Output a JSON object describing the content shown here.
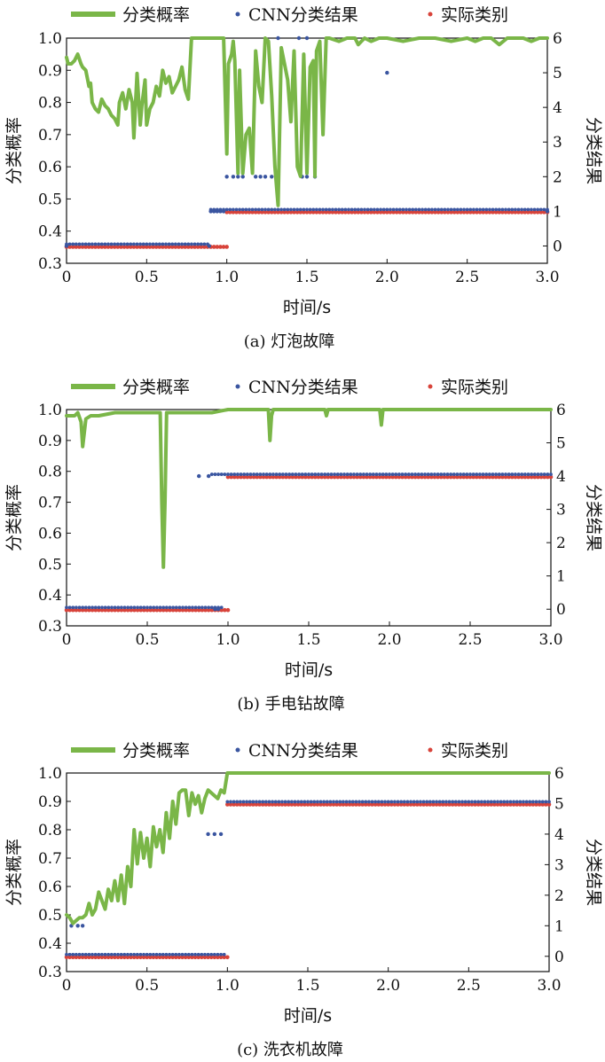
{
  "colors": {
    "probability": "#7ab648",
    "cnn": "#3a55a0",
    "actual": "#d8433a"
  },
  "legend": {
    "probability": "分类概率",
    "cnn": "CNN分类结果",
    "actual": "实际类别"
  },
  "chart_data": [
    {
      "type": "line",
      "caption": "(a) 灯泡故障",
      "xlabel": "时间/s",
      "ylabel": "分类概率",
      "ylabel_right": "分类结果",
      "xlim": [
        0,
        3.0
      ],
      "ylim": [
        0.3,
        1.0
      ],
      "ylim_right": [
        -0.5,
        6
      ],
      "xticks": [
        "0",
        "0.5",
        "1.0",
        "1.5",
        "2.0",
        "2.5",
        "3.0"
      ],
      "yticks": [
        "0.3",
        "0.4",
        "0.5",
        "0.6",
        "0.7",
        "0.8",
        "0.9",
        "1.0"
      ],
      "yticks_right": [
        "0",
        "1",
        "2",
        "3",
        "4",
        "5",
        "6"
      ],
      "series": [
        {
          "name": "分类概率",
          "x": [
            0,
            0.01,
            0.03,
            0.05,
            0.07,
            0.09,
            0.1,
            0.12,
            0.14,
            0.15,
            0.16,
            0.18,
            0.2,
            0.22,
            0.24,
            0.26,
            0.28,
            0.3,
            0.32,
            0.33,
            0.35,
            0.37,
            0.39,
            0.41,
            0.42,
            0.44,
            0.46,
            0.47,
            0.49,
            0.5,
            0.52,
            0.54,
            0.56,
            0.58,
            0.6,
            0.62,
            0.64,
            0.66,
            0.68,
            0.7,
            0.72,
            0.74,
            0.76,
            0.78,
            0.8,
            0.82,
            0.84,
            0.86,
            0.88,
            0.9,
            0.92,
            0.94,
            0.96,
            0.98,
            1.0,
            1.01,
            1.03,
            1.04,
            1.05,
            1.07,
            1.08,
            1.1,
            1.12,
            1.14,
            1.16,
            1.18,
            1.2,
            1.22,
            1.24,
            1.26,
            1.28,
            1.3,
            1.32,
            1.34,
            1.36,
            1.38,
            1.4,
            1.42,
            1.44,
            1.46,
            1.48,
            1.5,
            1.52,
            1.54,
            1.55,
            1.56,
            1.58,
            1.6,
            1.62,
            1.64,
            1.7,
            1.75,
            1.8,
            1.82,
            1.84,
            1.86,
            1.9,
            1.95,
            2.0,
            2.1,
            2.2,
            2.3,
            2.4,
            2.5,
            2.55,
            2.6,
            2.65,
            2.7,
            2.75,
            2.8,
            2.85,
            2.9,
            2.95,
            3.0
          ],
          "values": [
            0.94,
            0.92,
            0.92,
            0.93,
            0.95,
            0.92,
            0.91,
            0.9,
            0.85,
            0.86,
            0.8,
            0.78,
            0.77,
            0.81,
            0.79,
            0.78,
            0.76,
            0.75,
            0.73,
            0.8,
            0.83,
            0.78,
            0.84,
            0.8,
            0.69,
            0.89,
            0.73,
            0.79,
            0.87,
            0.73,
            0.78,
            0.8,
            0.85,
            0.82,
            0.9,
            0.86,
            0.88,
            0.83,
            0.85,
            0.87,
            0.91,
            0.84,
            0.81,
            1.0,
            1.0,
            1.0,
            1.0,
            1.0,
            1.0,
            1.0,
            1.0,
            1.0,
            1.0,
            1.0,
            0.64,
            0.92,
            0.95,
            0.99,
            0.93,
            0.58,
            0.9,
            0.58,
            0.7,
            0.72,
            0.58,
            0.96,
            0.85,
            0.8,
            1.0,
            0.99,
            0.82,
            0.6,
            0.48,
            0.97,
            0.92,
            0.87,
            0.74,
            0.96,
            0.6,
            0.57,
            0.95,
            0.58,
            0.91,
            0.93,
            0.57,
            0.96,
            0.99,
            0.7,
            1.0,
            1.0,
            0.99,
            1.0,
            1.0,
            0.98,
            0.99,
            1.0,
            0.99,
            1.0,
            1.0,
            0.99,
            1.0,
            1.0,
            0.99,
            1.0,
            0.99,
            1.0,
            1.0,
            0.98,
            1.0,
            1.0,
            1.0,
            0.99,
            1.0,
            1.0
          ]
        },
        {
          "name": "CNN分类结果",
          "points": [
            [
              0.0,
              0
            ],
            [
              0.89,
              0
            ],
            [
              0.9,
              1
            ],
            [
              0.92,
              1
            ],
            [
              0.94,
              1
            ],
            [
              0.96,
              1
            ],
            [
              1.0,
              2
            ],
            [
              1.04,
              2
            ],
            [
              1.07,
              2
            ],
            [
              1.1,
              2
            ],
            [
              1.18,
              2
            ],
            [
              1.21,
              2
            ],
            [
              1.24,
              2
            ],
            [
              1.28,
              2
            ],
            [
              1.32,
              6
            ],
            [
              1.45,
              6
            ],
            [
              1.5,
              6
            ],
            [
              1.47,
              2
            ],
            [
              1.5,
              2
            ],
            [
              1.55,
              2
            ],
            [
              2.0,
              5
            ],
            [
              0.98,
              1
            ],
            [
              3.0,
              1
            ]
          ],
          "segments": [
            {
              "x": [
                0.0,
                0.89
              ],
              "value": 0
            },
            {
              "x": [
                0.9,
                3.0
              ],
              "value": 1
            }
          ]
        },
        {
          "name": "实际类别",
          "segments": [
            {
              "x": [
                0.0,
                1.0
              ],
              "value": 0
            },
            {
              "x": [
                1.0,
                3.0
              ],
              "value": 1
            }
          ]
        }
      ]
    },
    {
      "type": "line",
      "caption": "(b) 手电钻故障",
      "xlabel": "时间/s",
      "ylabel": "分类概率",
      "ylabel_right": "分类结果",
      "xlim": [
        0,
        3.0
      ],
      "ylim": [
        0.3,
        1.0
      ],
      "ylim_right": [
        -0.5,
        6
      ],
      "xticks": [
        "0",
        "0.5",
        "1.0",
        "1.5",
        "2.0",
        "2.5",
        "3.0"
      ],
      "yticks": [
        "0.3",
        "0.4",
        "0.5",
        "0.6",
        "0.7",
        "0.8",
        "0.9",
        "1.0"
      ],
      "yticks_right": [
        "0",
        "1",
        "2",
        "3",
        "4",
        "5",
        "6"
      ],
      "series": [
        {
          "name": "分类概率",
          "x": [
            0,
            0.02,
            0.05,
            0.07,
            0.09,
            0.1,
            0.12,
            0.15,
            0.2,
            0.3,
            0.4,
            0.5,
            0.55,
            0.58,
            0.59,
            0.6,
            0.61,
            0.62,
            0.64,
            0.7,
            0.8,
            0.9,
            1.0,
            1.1,
            1.2,
            1.25,
            1.26,
            1.27,
            1.28,
            1.3,
            1.5,
            1.6,
            1.61,
            1.62,
            1.65,
            1.8,
            1.94,
            1.95,
            1.96,
            2.0,
            2.2,
            2.5,
            2.8,
            3.0
          ],
          "values": [
            0.98,
            0.98,
            0.98,
            0.99,
            0.96,
            0.88,
            0.97,
            0.98,
            0.98,
            0.99,
            0.99,
            0.99,
            0.99,
            0.99,
            0.7,
            0.49,
            0.7,
            0.99,
            0.99,
            0.99,
            0.99,
            0.99,
            1.0,
            1.0,
            1.0,
            1.0,
            0.9,
            0.98,
            1.0,
            1.0,
            1.0,
            1.0,
            0.98,
            1.0,
            1.0,
            1.0,
            1.0,
            0.95,
            1.0,
            1.0,
            1.0,
            1.0,
            1.0,
            1.0
          ]
        },
        {
          "name": "CNN分类结果",
          "points": [
            [
              0.82,
              4
            ],
            [
              0.88,
              4
            ],
            [
              0.92,
              0
            ],
            [
              0.94,
              0
            ]
          ],
          "segments": [
            {
              "x": [
                0.0,
                0.97
              ],
              "value": 0
            },
            {
              "x": [
                0.9,
                3.0
              ],
              "value": 4
            }
          ]
        },
        {
          "name": "实际类别",
          "segments": [
            {
              "x": [
                0.0,
                1.0
              ],
              "value": 0
            },
            {
              "x": [
                1.0,
                3.0
              ],
              "value": 4
            }
          ]
        }
      ]
    },
    {
      "type": "line",
      "caption": "(c) 洗衣机故障",
      "xlabel": "时间/s",
      "ylabel": "分类概率",
      "ylabel_right": "分类结果",
      "xlim": [
        0,
        3.0
      ],
      "ylim": [
        0.3,
        1.0
      ],
      "ylim_right": [
        -0.5,
        6
      ],
      "xticks": [
        "0",
        "0.5",
        "1.0",
        "1.5",
        "2.0",
        "2.5",
        "3.0"
      ],
      "yticks": [
        "0.3",
        "0.4",
        "0.5",
        "0.6",
        "0.7",
        "0.8",
        "0.9",
        "1.0"
      ],
      "yticks_right": [
        "0",
        "1",
        "2",
        "3",
        "4",
        "5",
        "6"
      ],
      "series": [
        {
          "name": "分类概率",
          "x": [
            0,
            0.02,
            0.04,
            0.06,
            0.08,
            0.1,
            0.12,
            0.14,
            0.16,
            0.18,
            0.2,
            0.22,
            0.24,
            0.26,
            0.28,
            0.3,
            0.32,
            0.34,
            0.36,
            0.38,
            0.4,
            0.42,
            0.44,
            0.46,
            0.48,
            0.5,
            0.52,
            0.54,
            0.56,
            0.58,
            0.6,
            0.62,
            0.64,
            0.66,
            0.68,
            0.7,
            0.72,
            0.74,
            0.76,
            0.78,
            0.8,
            0.82,
            0.84,
            0.86,
            0.88,
            0.9,
            0.92,
            0.94,
            0.96,
            0.98,
            1.0,
            1.5,
            2.0,
            2.5,
            3.0
          ],
          "values": [
            0.5,
            0.49,
            0.47,
            0.48,
            0.49,
            0.49,
            0.5,
            0.54,
            0.5,
            0.52,
            0.58,
            0.55,
            0.52,
            0.59,
            0.55,
            0.62,
            0.55,
            0.64,
            0.54,
            0.67,
            0.6,
            0.8,
            0.68,
            0.79,
            0.7,
            0.77,
            0.67,
            0.81,
            0.74,
            0.8,
            0.72,
            0.86,
            0.77,
            0.9,
            0.82,
            0.93,
            0.94,
            0.94,
            0.85,
            0.93,
            0.89,
            0.92,
            0.86,
            0.91,
            0.94,
            0.93,
            0.92,
            0.91,
            0.94,
            0.93,
            1.0,
            1.0,
            1.0,
            1.0,
            1.0
          ]
        },
        {
          "name": "CNN分类结果",
          "points": [
            [
              0.03,
              1
            ],
            [
              0.07,
              1
            ],
            [
              0.1,
              1
            ],
            [
              0.88,
              4
            ],
            [
              0.92,
              4
            ],
            [
              0.96,
              4
            ]
          ],
          "segments": [
            {
              "x": [
                0.0,
                0.98
              ],
              "value": 0
            },
            {
              "x": [
                1.0,
                3.0
              ],
              "value": 5
            }
          ]
        },
        {
          "name": "实际类别",
          "segments": [
            {
              "x": [
                0.0,
                1.0
              ],
              "value": 0
            },
            {
              "x": [
                1.0,
                3.0
              ],
              "value": 5
            }
          ]
        }
      ]
    }
  ]
}
